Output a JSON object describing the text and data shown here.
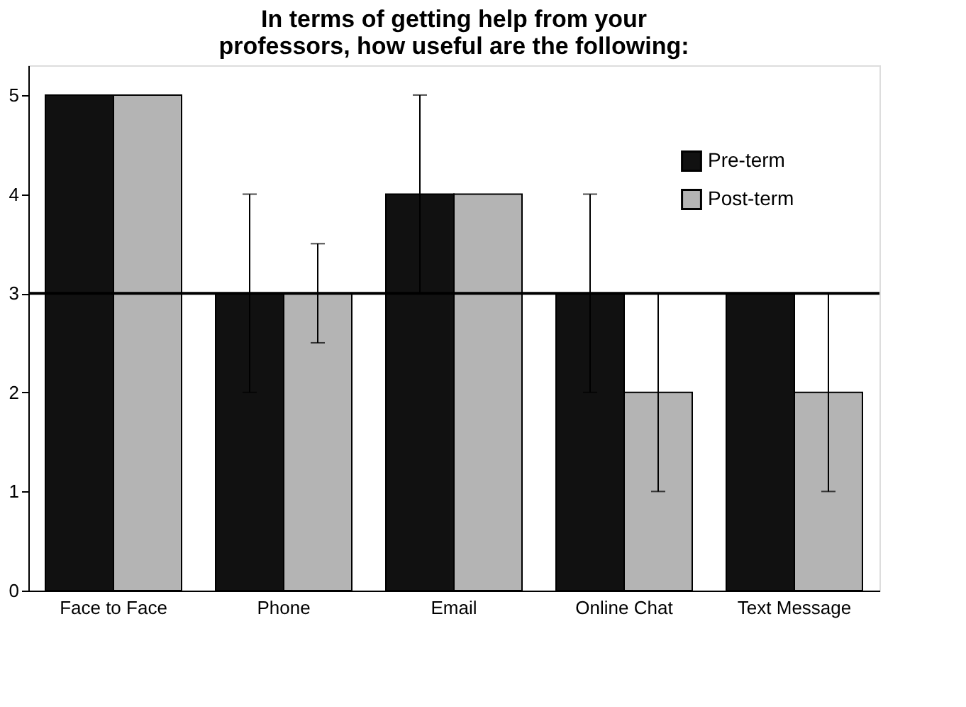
{
  "chart_data": {
    "type": "bar",
    "title": "In terms of getting help from your\nprofessors, how useful are the following:",
    "categories": [
      "Face to Face",
      "Phone",
      "Email",
      "Online Chat",
      "Text Message"
    ],
    "series": [
      {
        "name": "Pre-term",
        "color": "#111111",
        "values": [
          5,
          3,
          4,
          3,
          3
        ],
        "errors": [
          null,
          1,
          1,
          1,
          null
        ]
      },
      {
        "name": "Post-term",
        "color": "#b4b4b4",
        "values": [
          5,
          3,
          4,
          2,
          2
        ],
        "errors": [
          null,
          0.5,
          null,
          1,
          1
        ]
      }
    ],
    "ylim": [
      0,
      5.3
    ],
    "yticks": [
      0,
      1,
      2,
      3,
      4,
      5
    ],
    "ref_lines": [
      {
        "axis": "y",
        "value": 3,
        "color": "#000000"
      }
    ],
    "grid": false,
    "legend": "top right"
  }
}
